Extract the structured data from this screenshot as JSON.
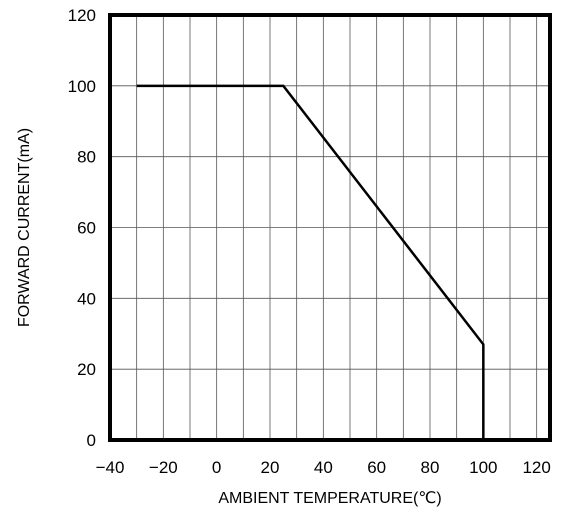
{
  "chart_data": {
    "type": "line",
    "title": "",
    "xlabel": "AMBIENT TEMPERATURE(℃)",
    "ylabel": "FORWARD CURRENT(mA)",
    "xlim": [
      -40,
      125
    ],
    "ylim": [
      0,
      120
    ],
    "x_ticks": [
      -40,
      -20,
      0,
      20,
      40,
      60,
      80,
      100,
      120
    ],
    "x_tick_labels": [
      "−40",
      "−20",
      "0",
      "20",
      "40",
      "60",
      "80",
      "100",
      "120"
    ],
    "y_ticks": [
      0,
      20,
      40,
      60,
      80,
      100,
      120
    ],
    "y_tick_labels": [
      "0",
      "20",
      "40",
      "60",
      "80",
      "100",
      "120"
    ],
    "grid": true,
    "x_grid_step": 10,
    "y_grid_step": 20,
    "legend": "none",
    "series": [
      {
        "x": [
          -30,
          25,
          100,
          100
        ],
        "y": [
          100,
          100,
          27,
          0
        ],
        "color": "#000000"
      }
    ]
  }
}
